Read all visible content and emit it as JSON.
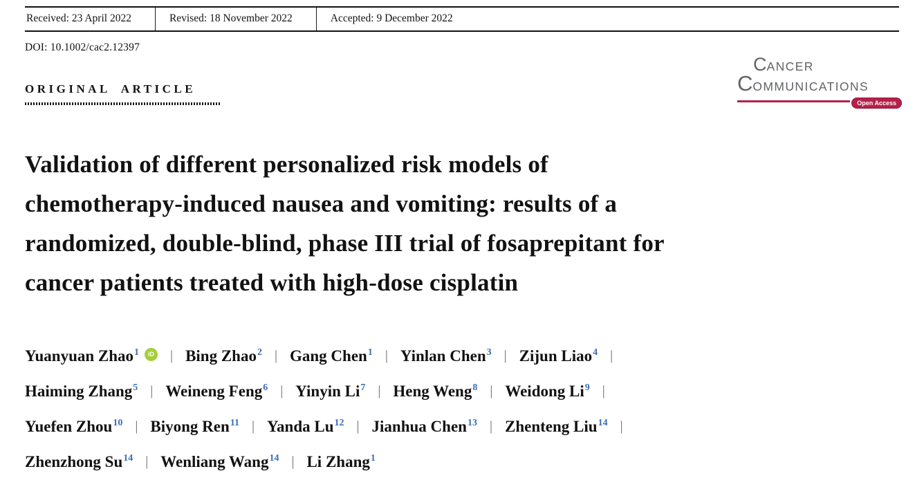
{
  "header_bar": {
    "received": "Received: 23 April 2022",
    "revised": "Revised: 18 November 2022",
    "accepted": "Accepted: 9 December 2022"
  },
  "doi_line": "DOI: 10.1002/cac2.12397",
  "section_label": "ORIGINAL ARTICLE",
  "logo": {
    "word1_initial": "C",
    "word1_rest": "ANCER",
    "word2_initial": "C",
    "word2_rest": "OMMUNICATIONS",
    "badge": "Open Access",
    "accent_color": "#b6204a",
    "text_color": "#616366"
  },
  "title_lines": [
    "Validation of different personalized risk models of",
    "chemotherapy-induced nausea and vomiting: results of a",
    "randomized, double-blind, phase III trial of fosaprepitant for",
    "cancer patients treated with high-dose cisplatin"
  ],
  "authors": {
    "superscript_color": "#3a6cb8",
    "separator": "|",
    "orcid": {
      "label": "iD",
      "color": "#a6ce39"
    },
    "lines": [
      [
        {
          "name": "Yuanyuan Zhao",
          "sup": "1",
          "orcid": true
        },
        {
          "name": "Bing Zhao",
          "sup": "2"
        },
        {
          "name": "Gang Chen",
          "sup": "1"
        },
        {
          "name": "Yinlan Chen",
          "sup": "3"
        },
        {
          "name": "Zijun Liao",
          "sup": "4"
        }
      ],
      [
        {
          "name": "Haiming Zhang",
          "sup": "5"
        },
        {
          "name": "Weineng Feng",
          "sup": "6"
        },
        {
          "name": "Yinyin Li",
          "sup": "7"
        },
        {
          "name": "Heng Weng",
          "sup": "8"
        },
        {
          "name": "Weidong Li",
          "sup": "9"
        }
      ],
      [
        {
          "name": "Yuefen Zhou",
          "sup": "10"
        },
        {
          "name": "Biyong Ren",
          "sup": "11"
        },
        {
          "name": "Yanda Lu",
          "sup": "12"
        },
        {
          "name": "Jianhua Chen",
          "sup": "13"
        },
        {
          "name": "Zhenteng Liu",
          "sup": "14"
        }
      ],
      [
        {
          "name": "Zhenzhong Su",
          "sup": "14"
        },
        {
          "name": "Wenliang Wang",
          "sup": "14"
        },
        {
          "name": "Li Zhang",
          "sup": "1"
        }
      ]
    ]
  }
}
